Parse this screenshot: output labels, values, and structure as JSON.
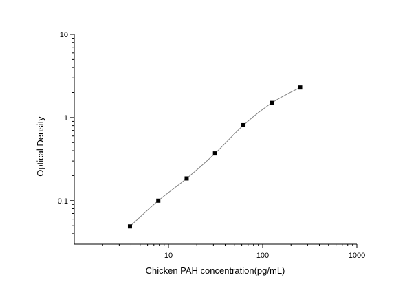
{
  "chart_data": {
    "type": "scatter",
    "title": "",
    "xlabel": "Chicken PAH concentration(pg/mL)",
    "ylabel": "Optical Density",
    "xscale": "log",
    "yscale": "log",
    "xlim": [
      1,
      1000
    ],
    "ylim": [
      0.03,
      10
    ],
    "x_ticks": [
      {
        "value": 10,
        "label": "10"
      },
      {
        "value": 100,
        "label": "100"
      },
      {
        "value": 1000,
        "label": "1000"
      }
    ],
    "y_ticks": [
      {
        "value": 0.1,
        "label": "0.1"
      },
      {
        "value": 1,
        "label": "1"
      },
      {
        "value": 10,
        "label": "10"
      }
    ],
    "grid": false,
    "legend": false,
    "series": [
      {
        "marker": "square",
        "color": "#000000",
        "points": [
          {
            "x": 3.9,
            "y": 0.049
          },
          {
            "x": 7.8,
            "y": 0.1
          },
          {
            "x": 15.6,
            "y": 0.185
          },
          {
            "x": 31.2,
            "y": 0.37
          },
          {
            "x": 62.5,
            "y": 0.81
          },
          {
            "x": 125,
            "y": 1.5
          },
          {
            "x": 250,
            "y": 2.3
          }
        ]
      }
    ],
    "fit_curve": {
      "color": "#808080",
      "x_range": [
        3.9,
        250
      ]
    }
  }
}
